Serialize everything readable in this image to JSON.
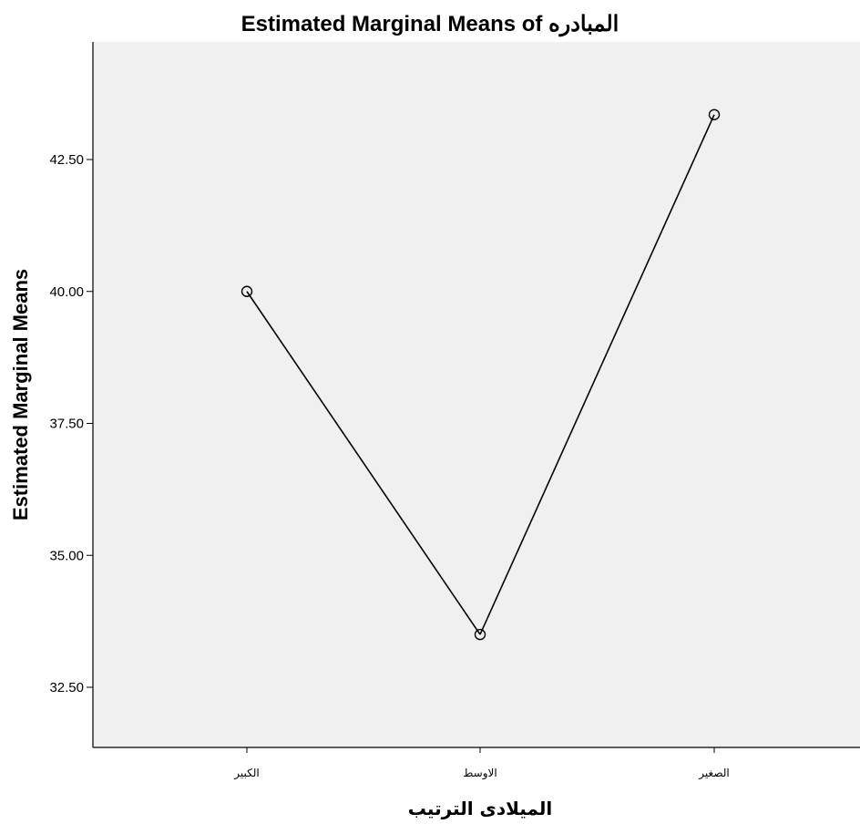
{
  "chart_data": {
    "type": "line",
    "title": "Estimated Marginal Means of المبادره",
    "xlabel": "الميلادى الترتيب",
    "ylabel": "Estimated Marginal Means",
    "categories": [
      "الكبير",
      "الاوسط",
      "الصغير"
    ],
    "series": [
      {
        "values": [
          40.0,
          33.5,
          43.35
        ]
      }
    ],
    "ylim": [
      31.3,
      45.0
    ],
    "yticks": [
      "32.50",
      "35.00",
      "37.50",
      "40.00",
      "42.50"
    ],
    "grid": false,
    "legend": "none",
    "colors": {
      "plot_background": "#f0f0f0",
      "line": "#000000",
      "marker": "#000000"
    }
  }
}
